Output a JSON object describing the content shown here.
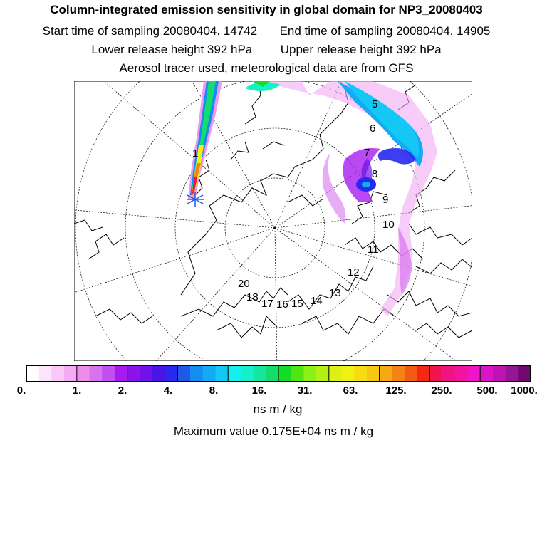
{
  "header": {
    "title": "Column-integrated emission sensitivity in global domain for NP3_20080403",
    "start_time": "Start time of sampling 20080404. 14742",
    "end_time": "End time of sampling 20080404. 14905",
    "lower_height": "Lower release height  392 hPa",
    "upper_height": "Upper release height  392 hPa",
    "tracer_info": "Aerosol tracer used, meteorological data are from GFS"
  },
  "map": {
    "day_labels": [
      "1",
      "5",
      "6",
      "7",
      "8",
      "9",
      "10",
      "11",
      "12",
      "13",
      "14",
      "15",
      "16",
      "17",
      "18",
      "20"
    ],
    "release_marker": "release-point"
  },
  "colorbar": {
    "colors": [
      "#ffffff",
      "#fde4fd",
      "#f9c8f9",
      "#f4aaf4",
      "#ee8cee",
      "#d873f0",
      "#c24ff0",
      "#a61bf0",
      "#8c14e8",
      "#6e14e6",
      "#4a14e6",
      "#2828f0",
      "#1e5ae6",
      "#148cf0",
      "#14aaf5",
      "#14c8f5",
      "#14f0f0",
      "#14f0c8",
      "#14e6a0",
      "#14dc6e",
      "#14dc28",
      "#50e614",
      "#8cf014",
      "#b4f014",
      "#dcf014",
      "#f0f014",
      "#f5dc14",
      "#f5c814",
      "#f5aa14",
      "#f58214",
      "#f55a14",
      "#f52814",
      "#f01450",
      "#f01482",
      "#f014a0",
      "#f014c8",
      "#dc14c8",
      "#be14b4",
      "#961496",
      "#6e0a6e"
    ],
    "tick_labels": [
      "0.",
      "1.",
      "2.",
      "4.",
      "8.",
      "16.",
      "31.",
      "63.",
      "125.",
      "250.",
      "500.",
      "1000."
    ]
  },
  "units_label": "ns m / kg",
  "max_value": "Maximum value  0.175E+04 ns m / kg"
}
